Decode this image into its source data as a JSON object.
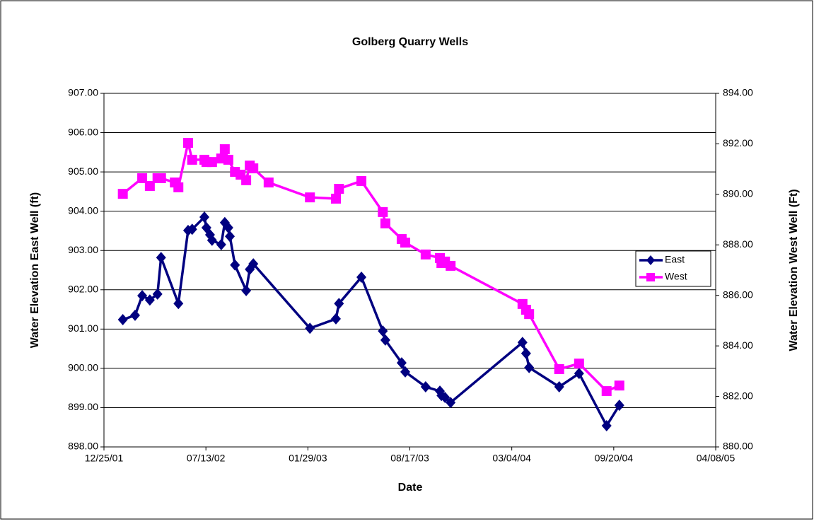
{
  "chart_data": {
    "type": "line",
    "title": "Golberg Quarry Wells",
    "xlabel": "Date",
    "ylabel": "Water Elevation East Well (ft)",
    "y2label": "Water Elevation West Well (Ft)",
    "xlim": [
      "2001-12-25",
      "2005-04-08"
    ],
    "xticks": [
      {
        "value": "2001-12-25",
        "label": "12/25/01"
      },
      {
        "value": "2002-07-13",
        "label": "07/13/02"
      },
      {
        "value": "2003-01-29",
        "label": "01/29/03"
      },
      {
        "value": "2003-08-17",
        "label": "08/17/03"
      },
      {
        "value": "2004-03-04",
        "label": "03/04/04"
      },
      {
        "value": "2004-09-20",
        "label": "09/20/04"
      },
      {
        "value": "2005-04-08",
        "label": "04/08/05"
      }
    ],
    "ylim": [
      898,
      907
    ],
    "yticks": [
      {
        "value": 898,
        "label": "898.00"
      },
      {
        "value": 899,
        "label": "899.00"
      },
      {
        "value": 900,
        "label": "900.00"
      },
      {
        "value": 901,
        "label": "901.00"
      },
      {
        "value": 902,
        "label": "902.00"
      },
      {
        "value": 903,
        "label": "903.00"
      },
      {
        "value": 904,
        "label": "904.00"
      },
      {
        "value": 905,
        "label": "905.00"
      },
      {
        "value": 906,
        "label": "906.00"
      },
      {
        "value": 907,
        "label": "907.00"
      }
    ],
    "y2lim": [
      880,
      894
    ],
    "y2ticks": [
      {
        "value": 880,
        "label": "880.00"
      },
      {
        "value": 882,
        "label": "882.00"
      },
      {
        "value": 884,
        "label": "884.00"
      },
      {
        "value": 886,
        "label": "886.00"
      },
      {
        "value": 888,
        "label": "888.00"
      },
      {
        "value": 890,
        "label": "890.00"
      },
      {
        "value": 892,
        "label": "892.00"
      },
      {
        "value": 894,
        "label": "894.00"
      }
    ],
    "grid": true,
    "legend": "right",
    "series": [
      {
        "name": "East",
        "color": "#000080",
        "marker": "diamond",
        "x": [
          "2002-01-31",
          "2002-02-24",
          "2002-03-10",
          "2002-03-25",
          "2002-04-09",
          "2002-04-16",
          "2002-05-20",
          "2002-06-08",
          "2002-06-16",
          "2002-07-10",
          "2002-07-14",
          "2002-07-21",
          "2002-07-25",
          "2002-08-12",
          "2002-08-19",
          "2002-08-26",
          "2002-08-29",
          "2002-09-08",
          "2002-09-30",
          "2002-10-07",
          "2002-10-14",
          "2003-02-02",
          "2003-03-25",
          "2003-03-31",
          "2003-05-14",
          "2003-06-25",
          "2003-06-30",
          "2003-08-01",
          "2003-08-08",
          "2003-09-17",
          "2003-10-15",
          "2003-10-18",
          "2003-10-25",
          "2003-11-05",
          "2004-03-25",
          "2004-04-01",
          "2004-04-07",
          "2004-06-05",
          "2004-07-14",
          "2004-09-06",
          "2004-10-01"
        ],
        "values": [
          901.24,
          901.35,
          901.85,
          901.74,
          901.89,
          902.82,
          901.65,
          903.51,
          903.54,
          903.85,
          903.58,
          903.4,
          903.26,
          903.15,
          903.71,
          903.58,
          903.36,
          902.63,
          901.98,
          902.52,
          902.66,
          901.02,
          901.26,
          901.65,
          902.32,
          900.95,
          900.72,
          900.14,
          899.91,
          899.53,
          899.42,
          899.31,
          899.26,
          899.13,
          900.66,
          900.38,
          900.02,
          899.53,
          899.87,
          898.54,
          899.06
        ]
      },
      {
        "name": "West",
        "color": "#ff00ff",
        "marker": "square",
        "axis": "y2",
        "x": [
          "2002-01-31",
          "2002-03-10",
          "2002-03-25",
          "2002-04-09",
          "2002-04-16",
          "2002-05-13",
          "2002-05-20",
          "2002-06-08",
          "2002-06-16",
          "2002-07-10",
          "2002-07-14",
          "2002-07-25",
          "2002-08-12",
          "2002-08-19",
          "2002-08-26",
          "2002-09-08",
          "2002-09-19",
          "2002-09-30",
          "2002-10-07",
          "2002-10-14",
          "2002-11-13",
          "2003-02-02",
          "2003-03-25",
          "2003-03-31",
          "2003-05-14",
          "2003-06-25",
          "2003-06-30",
          "2003-08-01",
          "2003-08-08",
          "2003-09-17",
          "2003-10-15",
          "2003-10-18",
          "2003-10-25",
          "2003-11-05",
          "2004-03-25",
          "2004-04-01",
          "2004-04-07",
          "2004-06-05",
          "2004-07-14",
          "2004-09-06",
          "2004-10-01"
        ],
        "values": [
          890.02,
          890.64,
          890.33,
          890.64,
          890.64,
          890.47,
          890.28,
          892.04,
          891.37,
          891.37,
          891.28,
          891.28,
          891.42,
          891.79,
          891.37,
          890.89,
          890.78,
          890.56,
          891.14,
          891.03,
          890.47,
          889.88,
          889.83,
          890.22,
          890.53,
          889.3,
          888.85,
          888.23,
          888.09,
          887.62,
          887.48,
          887.28,
          887.34,
          887.17,
          885.66,
          885.43,
          885.26,
          883.08,
          883.3,
          882.21,
          882.43
        ]
      }
    ]
  }
}
